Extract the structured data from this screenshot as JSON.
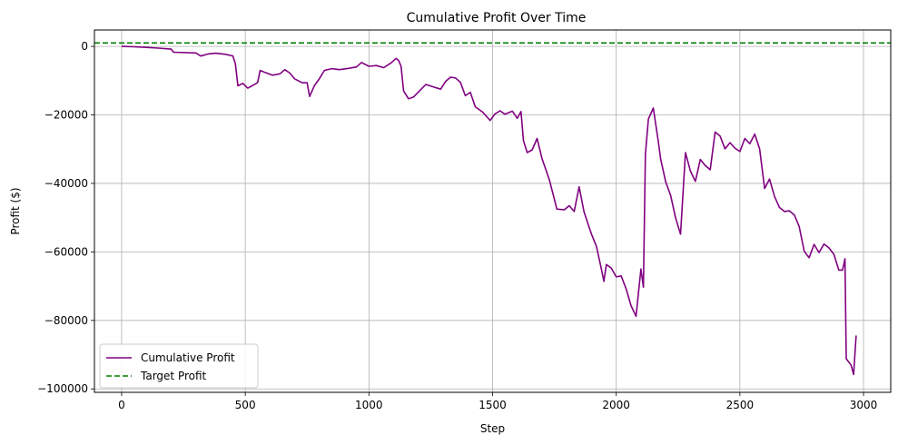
{
  "chart_data": {
    "type": "line",
    "title": "Cumulative Profit Over Time",
    "xlabel": "Step",
    "ylabel": "Profit ($)",
    "xlim": [
      -110,
      3110
    ],
    "ylim": [
      -101000,
      4800
    ],
    "x_ticks": [
      0,
      500,
      1000,
      1500,
      2000,
      2500,
      3000
    ],
    "y_ticks": [
      0,
      -20000,
      -40000,
      -60000,
      -80000,
      -100000
    ],
    "x_tick_labels": [
      "0",
      "500",
      "1000",
      "1500",
      "2000",
      "2500",
      "3000"
    ],
    "y_tick_labels": [
      "0",
      "−20000",
      "−40000",
      "−60000",
      "−80000",
      "−100000"
    ],
    "grid": true,
    "legend_position": "lower-left",
    "series": [
      {
        "name": "Cumulative Profit",
        "style": "solid",
        "color": "#800080",
        "points": [
          [
            0,
            0
          ],
          [
            50,
            -100
          ],
          [
            100,
            -300
          ],
          [
            150,
            -500
          ],
          [
            200,
            -800
          ],
          [
            210,
            -1700
          ],
          [
            300,
            -1900
          ],
          [
            320,
            -2800
          ],
          [
            350,
            -2200
          ],
          [
            380,
            -2000
          ],
          [
            420,
            -2300
          ],
          [
            450,
            -2800
          ],
          [
            460,
            -5000
          ],
          [
            470,
            -11500
          ],
          [
            490,
            -10800
          ],
          [
            510,
            -12200
          ],
          [
            540,
            -11000
          ],
          [
            550,
            -10500
          ],
          [
            560,
            -7000
          ],
          [
            580,
            -7600
          ],
          [
            610,
            -8400
          ],
          [
            640,
            -8000
          ],
          [
            660,
            -6800
          ],
          [
            680,
            -7800
          ],
          [
            700,
            -9500
          ],
          [
            730,
            -10600
          ],
          [
            750,
            -10600
          ],
          [
            760,
            -14600
          ],
          [
            780,
            -11400
          ],
          [
            800,
            -9400
          ],
          [
            820,
            -7000
          ],
          [
            850,
            -6500
          ],
          [
            880,
            -6800
          ],
          [
            920,
            -6400
          ],
          [
            950,
            -6000
          ],
          [
            970,
            -4700
          ],
          [
            1000,
            -5800
          ],
          [
            1030,
            -5600
          ],
          [
            1060,
            -6200
          ],
          [
            1090,
            -4800
          ],
          [
            1110,
            -3500
          ],
          [
            1120,
            -4100
          ],
          [
            1130,
            -5800
          ],
          [
            1140,
            -13000
          ],
          [
            1160,
            -15300
          ],
          [
            1180,
            -14800
          ],
          [
            1200,
            -13300
          ],
          [
            1230,
            -11100
          ],
          [
            1260,
            -11800
          ],
          [
            1290,
            -12500
          ],
          [
            1310,
            -10200
          ],
          [
            1330,
            -9000
          ],
          [
            1350,
            -9200
          ],
          [
            1370,
            -10500
          ],
          [
            1390,
            -14400
          ],
          [
            1410,
            -13400
          ],
          [
            1430,
            -17600
          ],
          [
            1460,
            -19200
          ],
          [
            1490,
            -21600
          ],
          [
            1510,
            -19700
          ],
          [
            1530,
            -18800
          ],
          [
            1550,
            -19800
          ],
          [
            1580,
            -18900
          ],
          [
            1600,
            -21000
          ],
          [
            1615,
            -19000
          ],
          [
            1625,
            -27500
          ],
          [
            1640,
            -31000
          ],
          [
            1660,
            -30200
          ],
          [
            1680,
            -26900
          ],
          [
            1700,
            -32800
          ],
          [
            1730,
            -39000
          ],
          [
            1760,
            -47500
          ],
          [
            1790,
            -47700
          ],
          [
            1810,
            -46500
          ],
          [
            1830,
            -48200
          ],
          [
            1850,
            -41000
          ],
          [
            1870,
            -48400
          ],
          [
            1900,
            -54800
          ],
          [
            1920,
            -58400
          ],
          [
            1940,
            -65000
          ],
          [
            1950,
            -68600
          ],
          [
            1960,
            -63700
          ],
          [
            1980,
            -64700
          ],
          [
            2000,
            -67300
          ],
          [
            2020,
            -67000
          ],
          [
            2040,
            -70800
          ],
          [
            2060,
            -75700
          ],
          [
            2080,
            -78800
          ],
          [
            2100,
            -65000
          ],
          [
            2110,
            -70300
          ],
          [
            2118,
            -31500
          ],
          [
            2130,
            -21200
          ],
          [
            2150,
            -18000
          ],
          [
            2170,
            -27700
          ],
          [
            2180,
            -33000
          ],
          [
            2200,
            -39600
          ],
          [
            2220,
            -43500
          ],
          [
            2240,
            -50000
          ],
          [
            2260,
            -54800
          ],
          [
            2270,
            -43000
          ],
          [
            2280,
            -31000
          ],
          [
            2300,
            -36400
          ],
          [
            2320,
            -39400
          ],
          [
            2340,
            -33000
          ],
          [
            2360,
            -34800
          ],
          [
            2380,
            -36000
          ],
          [
            2400,
            -25000
          ],
          [
            2420,
            -26200
          ],
          [
            2440,
            -29900
          ],
          [
            2460,
            -28100
          ],
          [
            2480,
            -29700
          ],
          [
            2500,
            -30700
          ],
          [
            2520,
            -26900
          ],
          [
            2540,
            -28400
          ],
          [
            2560,
            -25600
          ],
          [
            2580,
            -29900
          ],
          [
            2600,
            -41500
          ],
          [
            2620,
            -38700
          ],
          [
            2640,
            -43800
          ],
          [
            2660,
            -47000
          ],
          [
            2680,
            -48200
          ],
          [
            2700,
            -48000
          ],
          [
            2720,
            -49200
          ],
          [
            2740,
            -52600
          ],
          [
            2760,
            -59800
          ],
          [
            2780,
            -61700
          ],
          [
            2800,
            -57800
          ],
          [
            2820,
            -60200
          ],
          [
            2840,
            -57700
          ],
          [
            2860,
            -58800
          ],
          [
            2880,
            -60700
          ],
          [
            2900,
            -65300
          ],
          [
            2915,
            -65300
          ],
          [
            2925,
            -62000
          ],
          [
            2930,
            -91200
          ],
          [
            2950,
            -93100
          ],
          [
            2960,
            -95800
          ],
          [
            2970,
            -84400
          ]
        ]
      },
      {
        "name": "Target Profit",
        "style": "dashed",
        "color": "#008000",
        "y": 1000
      }
    ]
  }
}
